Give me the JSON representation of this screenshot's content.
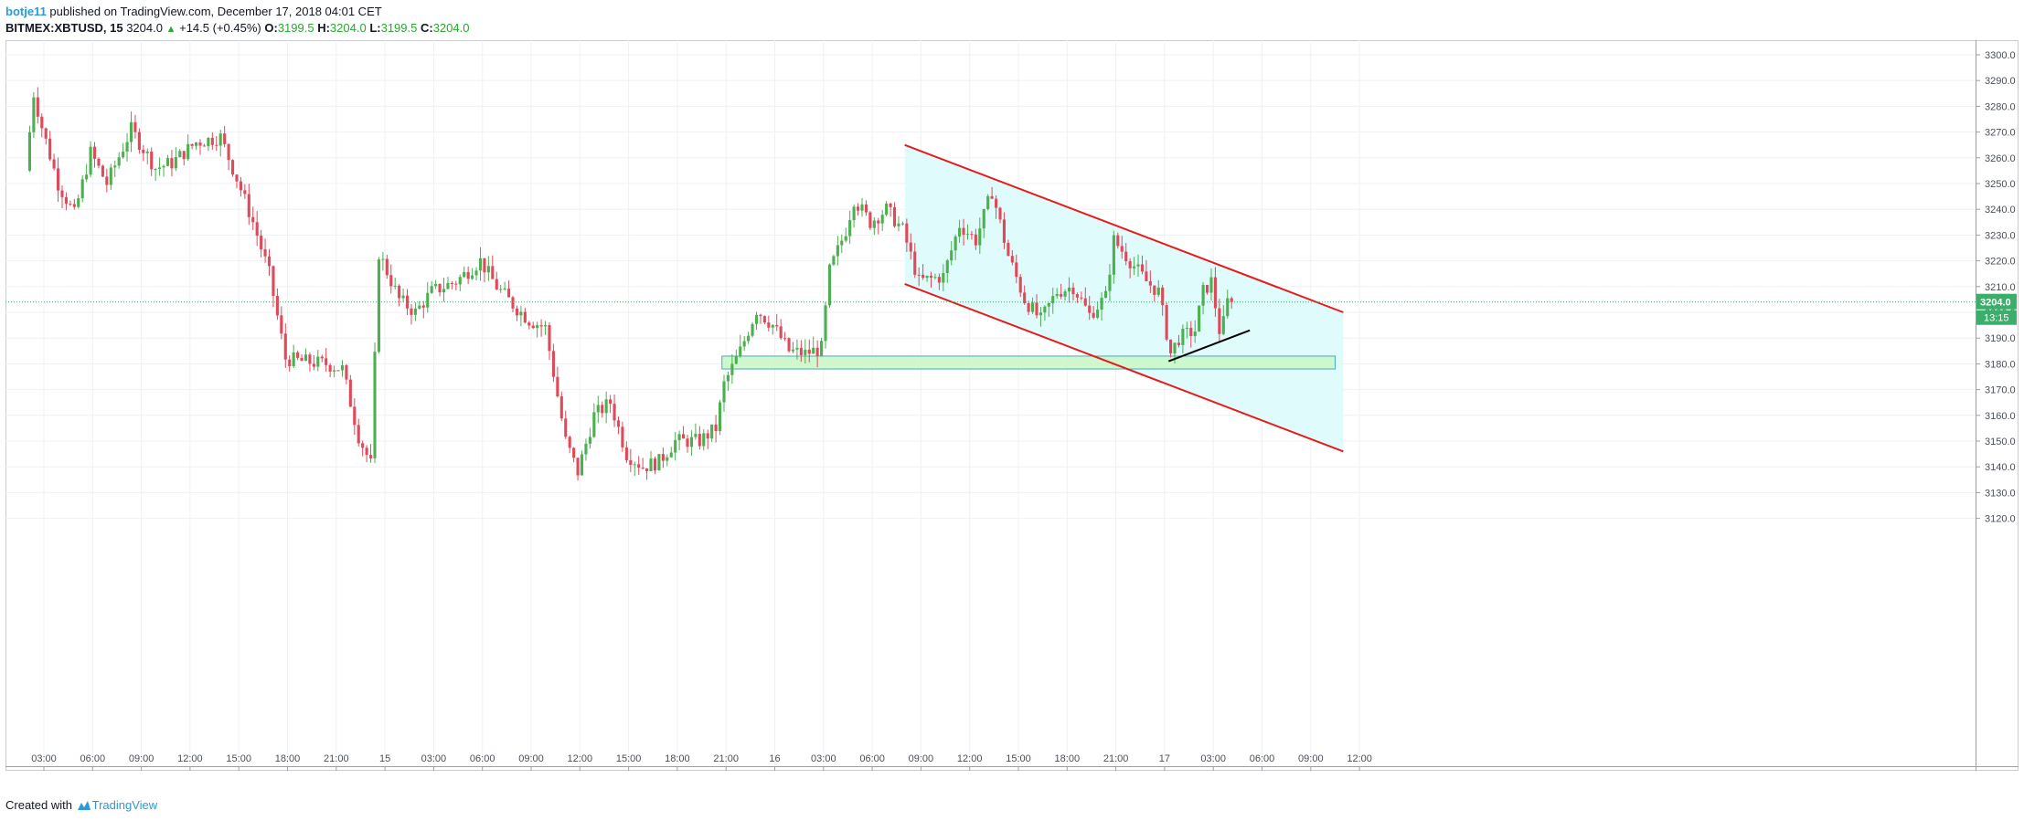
{
  "header": {
    "username": "botje11",
    "published_text": "published on TradingView.com, December 17, 2018 04:01 CET",
    "symbol": "BITMEX:XBTUSD, 15",
    "last_price": "3204.0",
    "change": "+14.5 (+0.45%)",
    "o_label": "O:",
    "o_value": "3199.5",
    "h_label": "H:",
    "h_value": "3204.0",
    "l_label": "L:",
    "l_value": "3199.5",
    "c_label": "C:",
    "c_value": "3204.0"
  },
  "footer": {
    "created_with": "Created with",
    "brand": "TradingView"
  },
  "colors": {
    "up": "#26a69a",
    "down": "#ef5350",
    "up_body": "#4caf50",
    "down_body": "#e0495a",
    "channel_line": "#e81b1b",
    "channel_fill": "#e0fbfb",
    "zone_fill": "#c8f7c5",
    "zone_border": "#4aa7c2",
    "grid": "#eef1f5",
    "trendline": "#000000",
    "price_marker": "#3cae6b"
  },
  "chart_data": {
    "type": "candlestick",
    "interval_minutes": 15,
    "x_start": "2018-12-14 02:00",
    "x_end": "2018-12-17 13:45",
    "ylim": [
      3110,
      3305
    ],
    "y_ticks": [
      "3300.0",
      "3290.0",
      "3280.0",
      "3270.0",
      "3260.0",
      "3250.0",
      "3240.0",
      "3230.0",
      "3220.0",
      "3210.0",
      "3200.0",
      "3190.0",
      "3180.0",
      "3170.0",
      "3160.0",
      "3150.0",
      "3140.0",
      "3130.0",
      "3120.0"
    ],
    "x_tick_labels": [
      "03:00",
      "06:00",
      "09:00",
      "12:00",
      "15:00",
      "18:00",
      "21:00",
      "15",
      "03:00",
      "06:00",
      "09:00",
      "12:00",
      "15:00",
      "18:00",
      "21:00",
      "16",
      "03:00",
      "06:00",
      "09:00",
      "12:00",
      "15:00",
      "18:00",
      "21:00",
      "17",
      "03:00",
      "06:00",
      "09:00",
      "12:00"
    ],
    "current_price_label": "3204.0",
    "countdown_label": "13:15",
    "current_price": 3204.0,
    "price_path": [
      [
        "2018-12-14 02:00",
        3255
      ],
      [
        "2018-12-14 02:30",
        3285
      ],
      [
        "2018-12-14 03:00",
        3272
      ],
      [
        "2018-12-14 04:00",
        3250
      ],
      [
        "2018-12-14 05:00",
        3238
      ],
      [
        "2018-12-14 06:00",
        3262
      ],
      [
        "2018-12-14 07:00",
        3250
      ],
      [
        "2018-12-14 08:30",
        3271
      ],
      [
        "2018-12-14 10:00",
        3256
      ],
      [
        "2018-12-14 11:00",
        3258
      ],
      [
        "2018-12-14 12:30",
        3266
      ],
      [
        "2018-12-14 14:00",
        3268
      ],
      [
        "2018-12-14 15:00",
        3252
      ],
      [
        "2018-12-14 16:00",
        3235
      ],
      [
        "2018-12-14 17:00",
        3215
      ],
      [
        "2018-12-14 18:00",
        3182
      ],
      [
        "2018-12-14 19:00",
        3181
      ],
      [
        "2018-12-14 20:30",
        3180
      ],
      [
        "2018-12-14 21:30",
        3178
      ],
      [
        "2018-12-14 22:30",
        3152
      ],
      [
        "2018-12-14 23:15",
        3141
      ],
      [
        "2018-12-14 23:45",
        3223
      ],
      [
        "2018-12-15 01:00",
        3205
      ],
      [
        "2018-12-15 02:00",
        3200
      ],
      [
        "2018-12-15 03:00",
        3208
      ],
      [
        "2018-12-15 04:30",
        3212
      ],
      [
        "2018-12-15 06:00",
        3220
      ],
      [
        "2018-12-15 07:00",
        3210
      ],
      [
        "2018-12-15 08:00",
        3203
      ],
      [
        "2018-12-15 09:00",
        3197
      ],
      [
        "2018-12-15 10:00",
        3194
      ],
      [
        "2018-12-15 11:15",
        3150
      ],
      [
        "2018-12-15 12:00",
        3138
      ],
      [
        "2018-12-15 13:00",
        3160
      ],
      [
        "2018-12-15 14:00",
        3165
      ],
      [
        "2018-12-15 15:00",
        3145
      ],
      [
        "2018-12-15 16:00",
        3140
      ],
      [
        "2018-12-15 17:00",
        3142
      ],
      [
        "2018-12-15 18:00",
        3150
      ],
      [
        "2018-12-15 19:30",
        3150
      ],
      [
        "2018-12-15 20:30",
        3155
      ],
      [
        "2018-12-15 21:00",
        3172
      ],
      [
        "2018-12-15 22:00",
        3185
      ],
      [
        "2018-12-15 23:00",
        3201
      ],
      [
        "2018-12-16 00:00",
        3195
      ],
      [
        "2018-12-16 01:00",
        3185
      ],
      [
        "2018-12-16 02:00",
        3184
      ],
      [
        "2018-12-16 03:00",
        3186
      ],
      [
        "2018-12-16 03:30",
        3216
      ],
      [
        "2018-12-16 04:30",
        3232
      ],
      [
        "2018-12-16 05:00",
        3244
      ],
      [
        "2018-12-16 06:00",
        3235
      ],
      [
        "2018-12-16 07:00",
        3240
      ],
      [
        "2018-12-16 08:00",
        3232
      ],
      [
        "2018-12-16 09:00",
        3212
      ],
      [
        "2018-12-16 10:30",
        3214
      ],
      [
        "2018-12-16 11:30",
        3234
      ],
      [
        "2018-12-16 12:30",
        3228
      ],
      [
        "2018-12-16 13:30",
        3247
      ],
      [
        "2018-12-16 14:30",
        3222
      ],
      [
        "2018-12-16 15:30",
        3205
      ],
      [
        "2018-12-16 16:30",
        3197
      ],
      [
        "2018-12-16 17:30",
        3208
      ],
      [
        "2018-12-16 18:30",
        3210
      ],
      [
        "2018-12-16 19:30",
        3199
      ],
      [
        "2018-12-16 20:30",
        3206
      ],
      [
        "2018-12-16 21:00",
        3228
      ],
      [
        "2018-12-16 22:00",
        3220
      ],
      [
        "2018-12-16 23:00",
        3212
      ],
      [
        "2018-12-16 23:45",
        3208
      ],
      [
        "2018-12-17 00:30",
        3184
      ],
      [
        "2018-12-17 01:00",
        3190
      ],
      [
        "2018-12-17 02:00",
        3193
      ],
      [
        "2018-12-17 02:30",
        3208
      ],
      [
        "2018-12-17 03:00",
        3212
      ],
      [
        "2018-12-17 03:30",
        3193
      ],
      [
        "2018-12-17 03:45",
        3196
      ],
      [
        "2018-12-17 04:00",
        3204
      ]
    ],
    "annotations": {
      "channel_upper": [
        [
          "2018-12-16 08:00",
          3265
        ],
        [
          "2018-12-17 11:00",
          3200
        ]
      ],
      "channel_lower": [
        [
          "2018-12-16 08:00",
          3211
        ],
        [
          "2018-12-17 11:00",
          3146
        ]
      ],
      "channel_fill_range": [
        "2018-12-16 08:00",
        "2018-12-17 11:00"
      ],
      "support_zone": {
        "x": [
          "2018-12-15 20:45",
          "2018-12-17 10:30"
        ],
        "y": [
          3178,
          3183
        ]
      },
      "trend_line": [
        [
          "2018-12-17 00:15",
          3181
        ],
        [
          "2018-12-17 05:15",
          3193
        ]
      ]
    }
  }
}
